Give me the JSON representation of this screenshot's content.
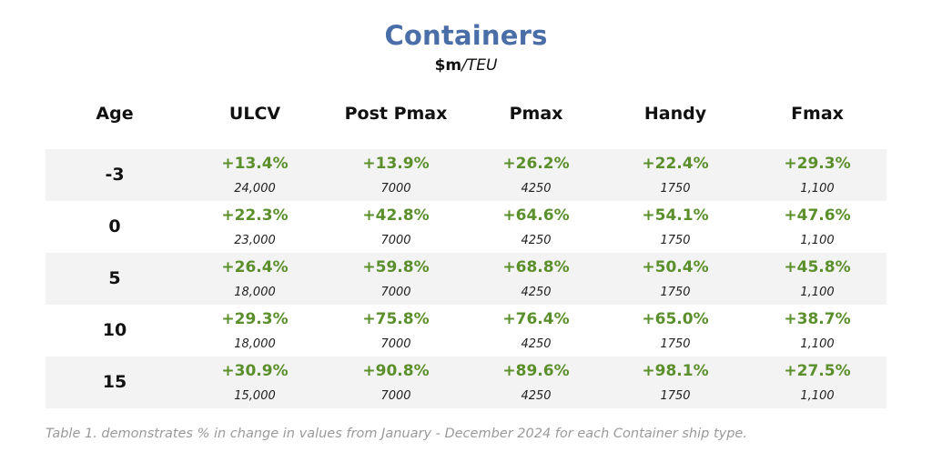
{
  "title": "Containers",
  "subtitle": {
    "unit_bold": "$m",
    "unit_italic": "/TEU"
  },
  "headers": [
    "Age",
    "ULCV",
    "Post Pmax",
    "Pmax",
    "Handy",
    "Fmax"
  ],
  "rows": [
    {
      "age": "-3",
      "values": [
        "+13.4%",
        "+13.9%",
        "+26.2%",
        "+22.4%",
        "+29.3%"
      ],
      "capacities": [
        "24,000",
        "7000",
        "4250",
        "1750",
        "1,100"
      ]
    },
    {
      "age": "0",
      "values": [
        "+22.3%",
        "+42.8%",
        "+64.6%",
        "+54.1%",
        "+47.6%"
      ],
      "capacities": [
        "23,000",
        "7000",
        "4250",
        "1750",
        "1,100"
      ]
    },
    {
      "age": "5",
      "values": [
        "+26.4%",
        "+59.8%",
        "+68.8%",
        "+50.4%",
        "+45.8%"
      ],
      "capacities": [
        "18,000",
        "7000",
        "4250",
        "1750",
        "1,100"
      ]
    },
    {
      "age": "10",
      "values": [
        "+29.3%",
        "+75.8%",
        "+76.4%",
        "+65.0%",
        "+38.7%"
      ],
      "capacities": [
        "18,000",
        "7000",
        "4250",
        "1750",
        "1,100"
      ]
    },
    {
      "age": "15",
      "values": [
        "+30.9%",
        "+90.8%",
        "+89.6%",
        "+98.1%",
        "+27.5%"
      ],
      "capacities": [
        "15,000",
        "7000",
        "4250",
        "1750",
        "1,100"
      ]
    }
  ],
  "caption": "Table 1. demonstrates % in change in values from January - December 2024 for each Container ship type.",
  "colors": {
    "title": "#4a6ea8",
    "positive": "#5b8f2b",
    "row_shade": "#f3f3f3",
    "caption": "#9a9a9a"
  }
}
